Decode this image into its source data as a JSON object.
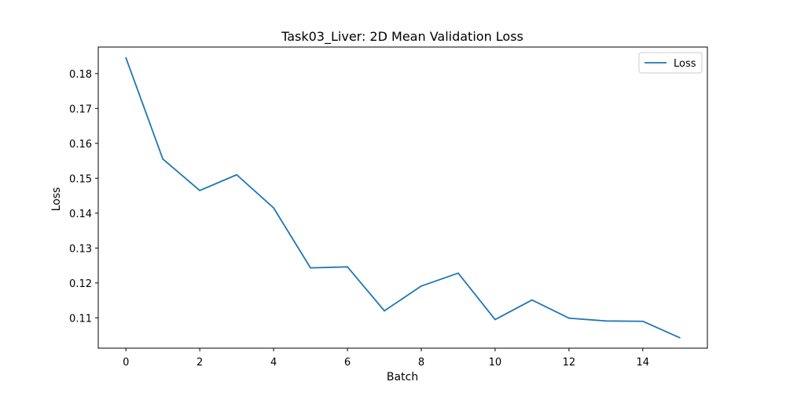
{
  "chart_data": {
    "type": "line",
    "title": "Task03_Liver: 2D Mean Validation Loss",
    "xlabel": "Batch",
    "ylabel": "Loss",
    "xlim": [
      -0.75,
      15.75
    ],
    "ylim": [
      0.1013,
      0.1876
    ],
    "x_ticks": [
      0,
      2,
      4,
      6,
      8,
      10,
      12,
      14
    ],
    "y_ticks": [
      0.11,
      0.12,
      0.13,
      0.14,
      0.15,
      0.16,
      0.17,
      0.18
    ],
    "grid": false,
    "legend": {
      "position": "top-right"
    },
    "series": [
      {
        "name": "Loss",
        "color": "#1f77b4",
        "x": [
          0,
          1,
          2,
          3,
          4,
          5,
          6,
          7,
          8,
          9,
          10,
          11,
          12,
          13,
          14,
          15
        ],
        "values": [
          0.1845,
          0.1555,
          0.1465,
          0.151,
          0.1415,
          0.1243,
          0.1246,
          0.112,
          0.1191,
          0.1228,
          0.1095,
          0.1151,
          0.1099,
          0.1091,
          0.109,
          0.1043
        ]
      }
    ]
  }
}
